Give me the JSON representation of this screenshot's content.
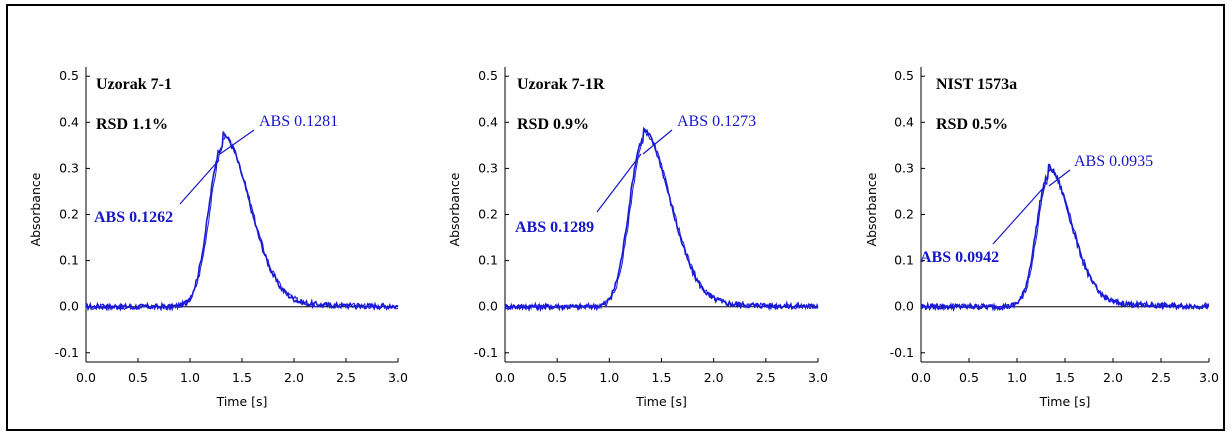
{
  "colors": {
    "trace": "#1a1ad6",
    "annotation": "#1616c8",
    "axis": "#000000",
    "baseline": "#000000"
  },
  "chart_data": [
    {
      "type": "line",
      "title": "",
      "xlabel": "Time [s]",
      "ylabel": "Absorbance",
      "xlim": [
        0.0,
        3.0
      ],
      "ylim": [
        -0.12,
        0.52
      ],
      "xticks": [
        "0.0",
        "0.5",
        "1.0",
        "1.5",
        "2.0",
        "2.5",
        "3.0"
      ],
      "yticks": [
        "-0.1",
        "0.0",
        "0.1",
        "0.2",
        "0.3",
        "0.4",
        "0.5"
      ],
      "peak": {
        "time": 1.31,
        "height": 0.35,
        "width": 0.13
      },
      "annotations": {
        "sample": "Uzorak 7-1",
        "rsd": "RSD 1.1%",
        "abs_upper": "ABS 0.1281",
        "abs_lower": "ABS 0.1262"
      }
    },
    {
      "type": "line",
      "title": "",
      "xlabel": "Time [s]",
      "ylabel": "Absorbance",
      "xlim": [
        0.0,
        3.0
      ],
      "ylim": [
        -0.12,
        0.52
      ],
      "xticks": [
        "0.0",
        "0.5",
        "1.0",
        "1.5",
        "2.0",
        "2.5",
        "3.0"
      ],
      "yticks": [
        "-0.1",
        "0.0",
        "0.1",
        "0.2",
        "0.3",
        "0.4",
        "0.5"
      ],
      "peak": {
        "time": 1.32,
        "height": 0.36,
        "width": 0.13
      },
      "annotations": {
        "sample": "Uzorak 7-1R",
        "rsd": "RSD 0.9%",
        "abs_upper": "ABS 0.1273",
        "abs_lower": "ABS 0.1289"
      }
    },
    {
      "type": "line",
      "title": "",
      "xlabel": "Time [s]",
      "ylabel": "Absorbance",
      "xlim": [
        0.0,
        3.0
      ],
      "ylim": [
        -0.12,
        0.52
      ],
      "xticks": [
        "0.0",
        "0.5",
        "1.0",
        "1.5",
        "2.0",
        "2.5",
        "3.0"
      ],
      "yticks": [
        "-0.1",
        "0.0",
        "0.1",
        "0.2",
        "0.3",
        "0.4",
        "0.5"
      ],
      "peak": {
        "time": 1.32,
        "height": 0.28,
        "width": 0.12
      },
      "annotations": {
        "sample": "NIST 1573a",
        "rsd": "RSD 0.5%",
        "abs_upper": "ABS 0.0935",
        "abs_lower": "ABS 0.0942"
      }
    }
  ]
}
